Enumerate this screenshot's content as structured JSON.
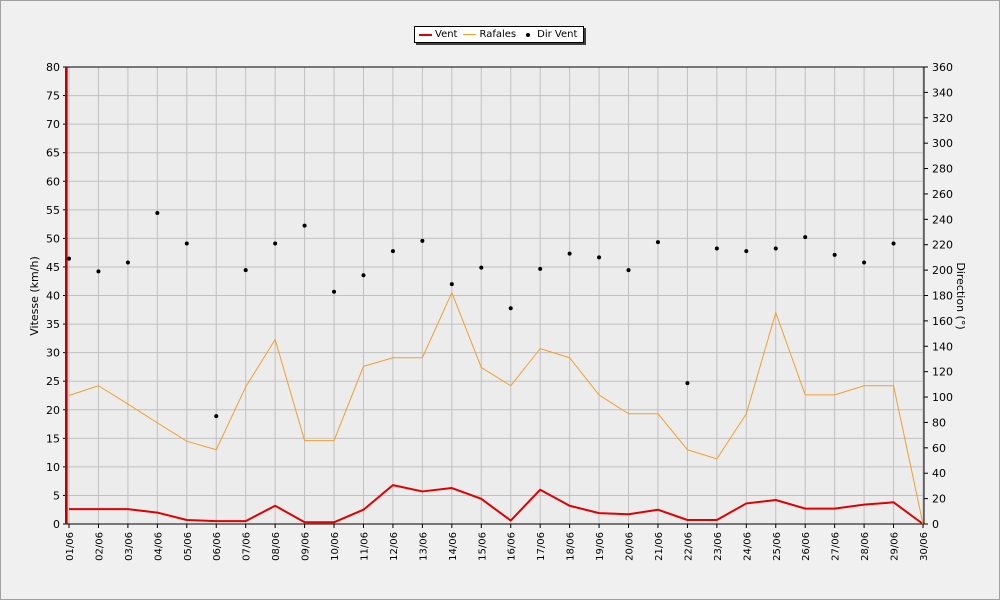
{
  "chart_data": {
    "type": "line",
    "categories": [
      "01/06",
      "02/06",
      "03/06",
      "04/06",
      "05/06",
      "06/06",
      "07/06",
      "08/06",
      "09/06",
      "10/06",
      "11/06",
      "12/06",
      "13/06",
      "14/06",
      "15/06",
      "16/06",
      "17/06",
      "18/06",
      "19/06",
      "20/06",
      "21/06",
      "22/06",
      "23/06",
      "24/06",
      "25/06",
      "26/06",
      "27/06",
      "28/06",
      "29/06",
      "30/06"
    ],
    "series": [
      {
        "name": "Vent",
        "axis": "left",
        "color": "#e00000",
        "values": [
          2.6,
          2.6,
          2.6,
          2.0,
          0.7,
          0.5,
          0.5,
          3.2,
          0.3,
          0.3,
          2.5,
          6.8,
          5.7,
          6.3,
          4.4,
          0.6,
          6.0,
          3.2,
          1.9,
          1.7,
          2.5,
          0.7,
          0.7,
          3.6,
          4.2,
          2.7,
          2.7,
          3.4,
          3.8,
          0.0
        ]
      },
      {
        "name": "Rafales",
        "axis": "left",
        "color": "#f0a030",
        "values": [
          22.5,
          24.2,
          21.0,
          17.7,
          14.5,
          13.0,
          24.0,
          32.3,
          14.6,
          14.6,
          27.6,
          29.1,
          29.1,
          40.5,
          27.4,
          24.2,
          30.7,
          29.1,
          22.6,
          19.3,
          19.3,
          13.0,
          11.4,
          19.3,
          37.0,
          22.6,
          22.6,
          24.2,
          24.2,
          0.0
        ]
      },
      {
        "name": "Dir Vent",
        "axis": "right",
        "color": "#000000",
        "style": "points",
        "values": [
          209,
          199,
          206,
          245,
          221,
          85,
          200,
          221,
          235,
          183,
          196,
          215,
          223,
          189,
          202,
          170,
          201,
          213,
          210,
          200,
          222,
          111,
          217,
          215,
          217,
          226,
          212,
          206,
          221,
          null
        ]
      }
    ],
    "ylabel": "Vitesse (km/h)",
    "ylim": [
      0,
      80
    ],
    "yticks": [
      0,
      5,
      10,
      15,
      20,
      25,
      30,
      35,
      40,
      45,
      50,
      55,
      60,
      65,
      70,
      75,
      80
    ],
    "y2label": "Direction (°)",
    "y2lim": [
      0,
      360
    ],
    "y2ticks": [
      0,
      20,
      40,
      60,
      80,
      100,
      120,
      140,
      160,
      180,
      200,
      220,
      240,
      260,
      280,
      300,
      320,
      340,
      360
    ],
    "grid": true,
    "legend_position": "top-center"
  }
}
